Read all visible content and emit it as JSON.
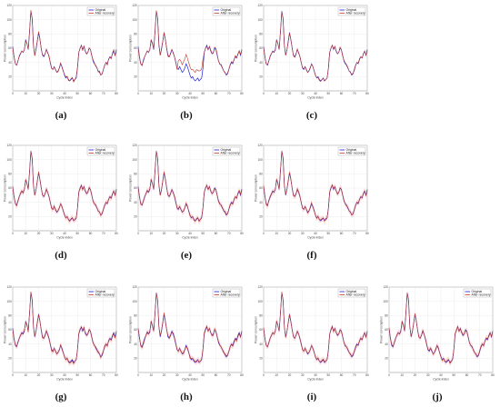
{
  "figure": {
    "panel_labels": [
      "(a)",
      "(b)",
      "(c)",
      "(d)",
      "(e)",
      "(f)",
      "(g)",
      "(h)",
      "(i)",
      "(j)"
    ]
  },
  "chart_data": {
    "type": "line",
    "title": "",
    "xlabel": "Cycle index",
    "ylabel": "Power consumption",
    "xlim": [
      0,
      80
    ],
    "ylim": [
      0,
      120
    ],
    "xticks": [
      0,
      10,
      20,
      30,
      40,
      50,
      60,
      70,
      80
    ],
    "yticks": [
      20,
      40,
      60,
      80,
      100,
      120
    ],
    "legend": [
      "Original",
      "After recovery"
    ],
    "legend_placement": "top-right",
    "grid": true,
    "colors": {
      "original": "#1f1fd6",
      "recovered": "#c0392b",
      "band": "#f0a0a0"
    },
    "x": [
      0,
      1,
      2,
      3,
      4,
      5,
      6,
      7,
      8,
      9,
      10,
      11,
      12,
      13,
      14,
      15,
      16,
      17,
      18,
      19,
      20,
      21,
      22,
      23,
      24,
      25,
      26,
      27,
      28,
      29,
      30,
      31,
      32,
      33,
      34,
      35,
      36,
      37,
      38,
      39,
      40,
      41,
      42,
      43,
      44,
      45,
      46,
      47,
      48,
      49,
      50,
      51,
      52,
      53,
      54,
      55,
      56,
      57,
      58,
      59,
      60,
      61,
      62,
      63,
      64,
      65,
      66,
      67,
      68,
      69,
      70,
      71,
      72,
      73,
      74,
      75,
      76,
      77,
      78,
      79,
      80
    ],
    "series": [
      {
        "name": "Original",
        "values": [
          62,
          48,
          38,
          36,
          42,
          48,
          52,
          56,
          54,
          58,
          72,
          66,
          58,
          84,
          112,
          102,
          64,
          50,
          58,
          70,
          82,
          72,
          60,
          50,
          48,
          52,
          58,
          54,
          48,
          40,
          32,
          30,
          34,
          30,
          26,
          28,
          32,
          38,
          34,
          28,
          22,
          18,
          20,
          16,
          14,
          16,
          18,
          14,
          16,
          18,
          32,
          54,
          60,
          64,
          58,
          62,
          56,
          52,
          54,
          60,
          58,
          50,
          42,
          38,
          36,
          32,
          28,
          26,
          22,
          24,
          30,
          36,
          40,
          38,
          44,
          48,
          46,
          52,
          56,
          50,
          58
        ]
      }
    ],
    "panels": [
      {
        "label": "(a)",
        "noise": 2.0,
        "bias": [],
        "band": false
      },
      {
        "label": "(b)",
        "noise": 2.0,
        "bias": [
          {
            "from": 31,
            "to": 50,
            "dy": 12
          }
        ],
        "band": false
      },
      {
        "label": "(c)",
        "noise": 1.5,
        "bias": [],
        "band": false
      },
      {
        "label": "(d)",
        "noise": 1.2,
        "bias": [],
        "band": true
      },
      {
        "label": "(e)",
        "noise": 1.2,
        "bias": [],
        "band": true
      },
      {
        "label": "(f)",
        "noise": 1.5,
        "bias": [],
        "band": true
      },
      {
        "label": "(g)",
        "noise": 1.8,
        "bias": [],
        "band": true
      },
      {
        "label": "(h)",
        "noise": 2.0,
        "bias": [],
        "band": true
      },
      {
        "label": "(i)",
        "noise": 1.2,
        "bias": [],
        "band": true
      },
      {
        "label": "(j)",
        "noise": 1.5,
        "bias": [],
        "band": true
      }
    ]
  }
}
